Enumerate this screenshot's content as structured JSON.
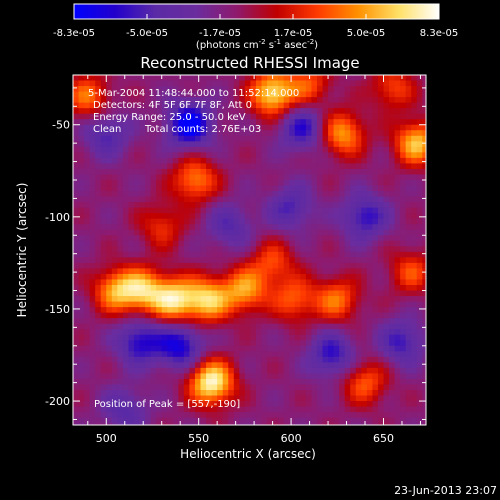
{
  "chart_data": {
    "type": "heatmap",
    "title": "Reconstructed RHESSI Image",
    "xlabel": "Heliocentric X (arcsec)",
    "ylabel": "Heliocentric Y (arcsec)",
    "xlim": [
      482,
      673
    ],
    "ylim": [
      -213,
      -23
    ],
    "x_ticks": [
      500,
      550,
      600,
      650
    ],
    "y_ticks": [
      -50,
      -100,
      -150,
      -200
    ],
    "colorbar": {
      "range": [
        -8.3e-05,
        8.3e-05
      ],
      "tick_labels": [
        "-8.3e-05",
        "-5.0e-05",
        "-1.7e-05",
        "1.7e-05",
        "5.0e-05",
        "8.3e-05"
      ],
      "units_label": "(photons cm",
      "units_sup1": "-2",
      "units_mid": " s",
      "units_sup2": "-1",
      "units_mid2": " asec",
      "units_sup3": "-2",
      "units_end": ")",
      "colors": [
        "#0000ff",
        "#2200cc",
        "#5a2aa6",
        "#6a2c9e",
        "#8e1a6e",
        "#c00000",
        "#ff3a00",
        "#ff9000",
        "#ffe066",
        "#ffffff"
      ]
    },
    "annotations": {
      "time": "5-Mar-2004 11:48:44.000 to 11:52:14.000",
      "detectors": "Detectors: 4F 5F 6F 7F 8F, Att 0",
      "energy": "Energy Range: 25.0 - 50.0 keV",
      "clean_label": "Clean",
      "counts": "Total counts: 2.76E+03",
      "peak": "Position of Peak = [557,-190]"
    },
    "features": {
      "bright_sources": [
        {
          "x": 557,
          "y": -190,
          "amp": 9e-05
        },
        {
          "x": 590,
          "y": -33,
          "amp": 8e-05
        },
        {
          "x": 537,
          "y": -145,
          "amp": 7.5e-05
        },
        {
          "x": 555,
          "y": -145,
          "amp": 7e-05
        },
        {
          "x": 575,
          "y": -140,
          "amp": 6e-05
        },
        {
          "x": 520,
          "y": -140,
          "amp": 6.5e-05
        },
        {
          "x": 505,
          "y": -140,
          "amp": 6e-05
        },
        {
          "x": 628,
          "y": -55,
          "amp": 6e-05
        },
        {
          "x": 668,
          "y": -60,
          "amp": 7e-05
        },
        {
          "x": 548,
          "y": -80,
          "amp": 5.5e-05
        },
        {
          "x": 490,
          "y": -35,
          "amp": 5e-05
        },
        {
          "x": 625,
          "y": -145,
          "amp": 5e-05
        },
        {
          "x": 602,
          "y": -145,
          "amp": 4.5e-05
        },
        {
          "x": 590,
          "y": -125,
          "amp": 4e-05
        },
        {
          "x": 640,
          "y": -190,
          "amp": 4.5e-05
        },
        {
          "x": 665,
          "y": -130,
          "amp": 4e-05
        },
        {
          "x": 610,
          "y": -28,
          "amp": 4e-05
        },
        {
          "x": 655,
          "y": -30,
          "amp": 4e-05
        },
        {
          "x": 530,
          "y": -105,
          "amp": 3.5e-05
        }
      ],
      "dark_sources": [
        {
          "x": 545,
          "y": -50,
          "amp": -7.5e-05
        },
        {
          "x": 606,
          "y": -52,
          "amp": -5e-05
        },
        {
          "x": 540,
          "y": -170,
          "amp": -6e-05
        },
        {
          "x": 518,
          "y": -168,
          "amp": -5.5e-05
        },
        {
          "x": 622,
          "y": -175,
          "amp": -5e-05
        },
        {
          "x": 640,
          "y": -100,
          "amp": -5e-05
        },
        {
          "x": 500,
          "y": -55,
          "amp": -4e-05
        },
        {
          "x": 660,
          "y": -168,
          "amp": -4.5e-05
        },
        {
          "x": 600,
          "y": -95,
          "amp": -4e-05
        },
        {
          "x": 567,
          "y": -105,
          "amp": -3.5e-05
        },
        {
          "x": 510,
          "y": -205,
          "amp": -3.5e-05
        }
      ]
    }
  },
  "footer": {
    "timestamp": "23-Jun-2013 23:07"
  }
}
